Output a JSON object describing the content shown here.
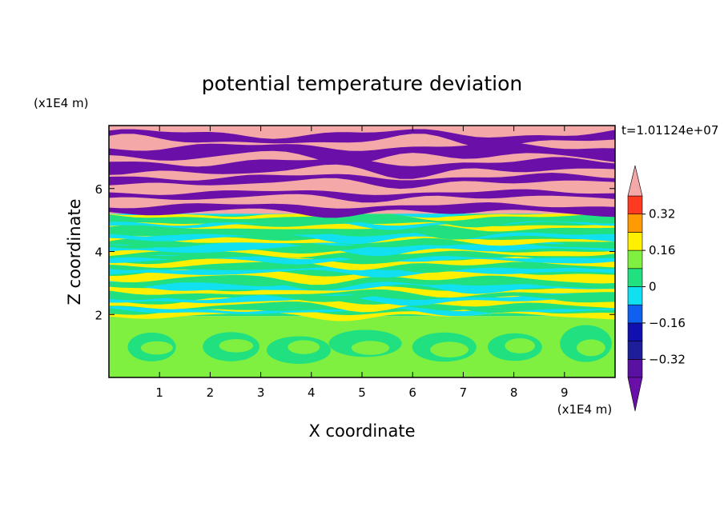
{
  "chart_data": {
    "type": "heatmap",
    "title": "potential temperature deviation",
    "timestamp": "t=1.01124e+07",
    "xlabel": "X coordinate",
    "ylabel": "Z coordinate",
    "x_unit": "(x1E4 m)",
    "y_unit": "(x1E4 m)",
    "x_ticks": [
      "1",
      "2",
      "3",
      "4",
      "5",
      "6",
      "7",
      "8",
      "9"
    ],
    "y_ticks": [
      "2",
      "4",
      "6"
    ],
    "xlim": [
      0,
      10
    ],
    "ylim": [
      0,
      8
    ],
    "colorbar": {
      "labels": [
        "0.32",
        "0.16",
        "0",
        "−0.16",
        "−0.32"
      ],
      "label_values": [
        0.32,
        0.16,
        0,
        -0.16,
        -0.32
      ],
      "levels": [
        -0.4,
        -0.32,
        -0.24,
        -0.16,
        -0.08,
        0,
        0.08,
        0.16,
        0.24,
        0.32,
        0.4
      ],
      "colors": [
        "#5a0ea0",
        "#2a2aa0",
        "#1a1aa8",
        "#1060f0",
        "#10e0f0",
        "#20e080",
        "#80f040",
        "#fff000",
        "#ff9a00",
        "#ff3a20",
        "#f08080",
        "#f4a8a8"
      ],
      "over_color": "#f4a8a8",
      "under_color": "#6a10a8"
    },
    "layers": [
      {
        "z_range": [
          0,
          1.95
        ],
        "description_value": 0.04,
        "colors": [
          "#20e080",
          "#80f040"
        ]
      },
      {
        "z_range": [
          1.95,
          5.2
        ],
        "description_value": 0,
        "colors": [
          "#fff000",
          "#ff9a00",
          "#ff3a20",
          "#10e0f0",
          "#1060f0",
          "#2a2aa0",
          "#20e080",
          "#80f040",
          "#f08080"
        ]
      },
      {
        "z_range": [
          5.2,
          8
        ],
        "description_value": 0,
        "colors": [
          "#f4a8a8",
          "#6a10a8"
        ]
      }
    ]
  }
}
